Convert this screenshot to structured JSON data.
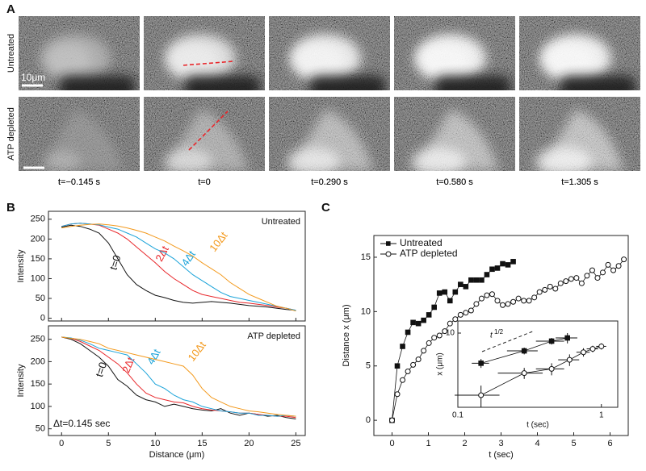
{
  "panel_labels": [
    "A",
    "B",
    "C"
  ],
  "panel_a": {
    "rows": [
      "Untreated",
      "ATP depleted"
    ],
    "scale_bar": "10μm",
    "times": [
      "t=−0.145 s",
      "t=0",
      "t=0.290 s",
      "t=0.580 s",
      "t=1.305 s"
    ]
  },
  "chart_data": [
    {
      "type": "line",
      "annotation": "Untreated",
      "ylabel": "Intensity",
      "x": [
        0,
        1,
        2,
        3,
        4,
        5,
        6,
        7,
        8,
        9,
        10,
        11,
        12,
        13,
        14,
        15,
        16,
        17,
        18,
        19,
        20,
        21,
        22,
        23,
        24,
        25
      ],
      "xlim": [
        -1.4,
        26
      ],
      "xticks": [
        0,
        5,
        10,
        15,
        20,
        25
      ],
      "xtick_labels": false,
      "ylim": [
        -7,
        270
      ],
      "yticks": [
        0,
        50,
        100,
        150,
        200,
        250
      ],
      "series": [
        {
          "name": "t=0",
          "color": "#111111",
          "values": [
            230,
            235,
            232,
            225,
            215,
            190,
            150,
            110,
            85,
            70,
            58,
            52,
            45,
            40,
            38,
            40,
            42,
            40,
            38,
            35,
            32,
            30,
            28,
            25,
            22,
            20
          ]
        },
        {
          "name": "2Δt",
          "color": "#e8262a",
          "values": [
            232,
            238,
            240,
            238,
            235,
            225,
            215,
            200,
            180,
            160,
            140,
            118,
            100,
            85,
            70,
            60,
            55,
            50,
            45,
            40,
            38,
            35,
            32,
            28,
            25,
            20
          ]
        },
        {
          "name": "4Δt",
          "color": "#1aa3d9",
          "values": [
            232,
            238,
            240,
            238,
            236,
            230,
            225,
            215,
            205,
            190,
            175,
            165,
            150,
            130,
            110,
            95,
            80,
            65,
            55,
            50,
            45,
            40,
            35,
            30,
            25,
            20
          ]
        },
        {
          "name": "10Δt",
          "color": "#f39a1e",
          "values": [
            228,
            232,
            235,
            237,
            238,
            236,
            233,
            228,
            222,
            215,
            205,
            195,
            182,
            170,
            157,
            140,
            125,
            110,
            90,
            75,
            60,
            50,
            40,
            30,
            25,
            18
          ]
        }
      ]
    },
    {
      "type": "line",
      "annotation": "ATP depleted",
      "note": "Δt=0.145 sec",
      "xlabel": "Distance (μm)",
      "ylabel": "Intensity",
      "x": [
        0,
        1,
        2,
        3,
        4,
        5,
        6,
        7,
        8,
        9,
        10,
        11,
        12,
        13,
        14,
        15,
        16,
        17,
        18,
        19,
        20,
        21,
        22,
        23,
        24,
        25
      ],
      "xlim": [
        -1.4,
        26
      ],
      "xticks": [
        0,
        5,
        10,
        15,
        20,
        25
      ],
      "ylim": [
        35,
        280
      ],
      "yticks": [
        50,
        100,
        150,
        200,
        250
      ],
      "series": [
        {
          "name": "t=0",
          "color": "#111111",
          "values": [
            255,
            250,
            240,
            225,
            210,
            190,
            160,
            145,
            125,
            115,
            110,
            100,
            105,
            100,
            95,
            92,
            90,
            95,
            85,
            80,
            85,
            82,
            78,
            80,
            75,
            72
          ]
        },
        {
          "name": "2Δt",
          "color": "#e8262a",
          "values": [
            255,
            252,
            245,
            235,
            225,
            210,
            195,
            175,
            150,
            130,
            120,
            115,
            110,
            108,
            100,
            95,
            92,
            90,
            88,
            85,
            85,
            82,
            80,
            78,
            78,
            75
          ]
        },
        {
          "name": "4Δt",
          "color": "#1aa3d9",
          "values": [
            255,
            253,
            248,
            240,
            230,
            225,
            220,
            215,
            195,
            175,
            150,
            140,
            125,
            115,
            110,
            100,
            95,
            90,
            88,
            85,
            85,
            80,
            80,
            78,
            80,
            78
          ]
        },
        {
          "name": "10Δt",
          "color": "#f39a1e",
          "values": [
            255,
            252,
            250,
            245,
            240,
            230,
            225,
            220,
            215,
            210,
            205,
            200,
            195,
            190,
            170,
            140,
            120,
            110,
            100,
            95,
            90,
            88,
            85,
            82,
            80,
            78
          ]
        }
      ]
    },
    {
      "type": "line",
      "xlabel": "t (sec)",
      "ylabel": "Distance x (μm)",
      "legend": "upper left",
      "xlim": [
        -0.5,
        6.5
      ],
      "xticks": [
        0,
        1,
        2,
        3,
        4,
        5,
        6
      ],
      "ylim": [
        -1.4,
        17
      ],
      "yticks": [
        0,
        5,
        10,
        15
      ],
      "series": [
        {
          "name": "Untreated",
          "color": "#111111",
          "marker": "square",
          "filled": true,
          "x": [
            0,
            0.145,
            0.29,
            0.435,
            0.58,
            0.725,
            0.87,
            1.015,
            1.16,
            1.305,
            1.45,
            1.595,
            1.74,
            1.885,
            2.03,
            2.175,
            2.32,
            2.465,
            2.61,
            2.755,
            2.9,
            3.045,
            3.19,
            3.335
          ],
          "values": [
            0,
            5.0,
            6.8,
            8.1,
            9.0,
            8.9,
            9.2,
            9.7,
            10.4,
            11.7,
            11.8,
            11.0,
            11.8,
            12.5,
            12.3,
            12.9,
            12.9,
            12.9,
            13.4,
            13.9,
            14.0,
            14.4,
            14.3,
            14.6
          ]
        },
        {
          "name": "ATP depleted",
          "color": "#111111",
          "marker": "circle",
          "filled": false,
          "x": [
            0,
            0.145,
            0.29,
            0.435,
            0.58,
            0.725,
            0.87,
            1.015,
            1.16,
            1.305,
            1.45,
            1.595,
            1.74,
            1.885,
            2.03,
            2.175,
            2.32,
            2.465,
            2.61,
            2.755,
            2.9,
            3.045,
            3.19,
            3.335,
            3.48,
            3.625,
            3.77,
            3.915,
            4.06,
            4.205,
            4.35,
            4.495,
            4.64,
            4.785,
            4.93,
            5.075,
            5.22,
            5.365,
            5.51,
            5.655,
            5.8,
            5.945,
            6.09,
            6.235,
            6.38
          ],
          "values": [
            0,
            2.4,
            3.7,
            4.5,
            5.1,
            5.6,
            6.4,
            7.1,
            7.6,
            7.8,
            8.2,
            8.9,
            9.3,
            9.7,
            9.9,
            10.1,
            10.7,
            11.2,
            11.5,
            11.6,
            11.0,
            10.6,
            10.7,
            10.9,
            11.2,
            11.0,
            11.0,
            11.3,
            11.8,
            12.0,
            12.3,
            12.1,
            12.6,
            12.8,
            13.0,
            13.1,
            12.6,
            13.3,
            13.8,
            13.1,
            13.6,
            14.3,
            13.8,
            14.2,
            14.8
          ]
        }
      ]
    },
    {
      "type": "line",
      "xlabel": "t (sec)",
      "ylabel": "x (μm)",
      "annotation": {
        "base": "t",
        "sup": "1/2"
      },
      "xscale": "log",
      "yscale": "log",
      "xlim": [
        0.1,
        1.3
      ],
      "xticks": [
        0.1,
        1
      ],
      "ylim": [
        2,
        13
      ],
      "yticks": [
        10
      ],
      "series": [
        {
          "name": "Untreated",
          "color": "#111111",
          "marker": "square",
          "filled": true,
          "x": [
            0.145,
            0.29,
            0.45,
            0.58
          ],
          "values": [
            5.2,
            6.8,
            8.4,
            9.0
          ],
          "xerr": [
            0.02,
            0.07,
            0.1,
            0.1
          ],
          "yerr": [
            0.5,
            0.5,
            0.6,
            1.0
          ]
        },
        {
          "name": "ATP depleted",
          "color": "#111111",
          "marker": "circle",
          "filled": false,
          "x": [
            0.145,
            0.29,
            0.45,
            0.6,
            0.75,
            0.87,
            1.0
          ],
          "values": [
            2.6,
            4.2,
            4.6,
            5.6,
            6.6,
            7.1,
            7.5
          ],
          "xerr": [
            0.05,
            0.1,
            0.1,
            0.1,
            0.08,
            0.08,
            0.08
          ],
          "yerr": [
            0.6,
            0.5,
            0.6,
            0.7,
            0.6,
            0.5,
            0.5
          ]
        }
      ]
    }
  ]
}
